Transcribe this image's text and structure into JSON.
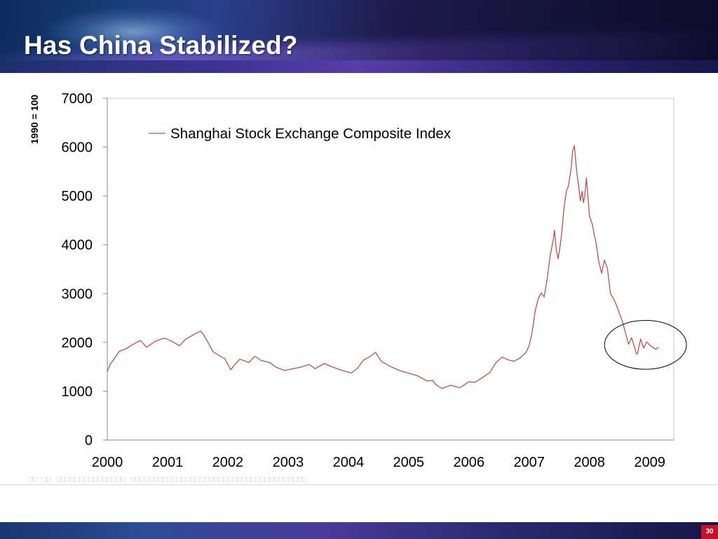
{
  "slide": {
    "title": "Has China Stabilized?",
    "page_number": "30"
  },
  "chart_data": {
    "type": "line",
    "title": "",
    "xlabel": "",
    "ylabel": "1990 = 100",
    "ylim": [
      0,
      7000
    ],
    "xlim": [
      2000,
      2009.4
    ],
    "yticks": [
      0,
      1000,
      2000,
      3000,
      4000,
      5000,
      6000,
      7000
    ],
    "xticks": [
      "2000",
      "2001",
      "2002",
      "2003",
      "2004",
      "2005",
      "2006",
      "2007",
      "2008",
      "2009"
    ],
    "grid": false,
    "legend_position": "top-left",
    "series": [
      {
        "name": "Shanghai Stock Exchange Composite Index",
        "color": "#c0504d",
        "x": [
          2000.0,
          2000.05,
          2000.1,
          2000.2,
          2000.3,
          2000.45,
          2000.55,
          2000.65,
          2000.8,
          2000.95,
          2001.05,
          2001.2,
          2001.3,
          2001.45,
          2001.55,
          2001.6,
          2001.7,
          2001.75,
          2001.85,
          2001.95,
          2002.05,
          2002.1,
          2002.2,
          2002.35,
          2002.45,
          2002.55,
          2002.7,
          2002.8,
          2002.95,
          2003.05,
          2003.2,
          2003.35,
          2003.45,
          2003.6,
          2003.75,
          2003.9,
          2004.05,
          2004.15,
          2004.25,
          2004.35,
          2004.45,
          2004.55,
          2004.7,
          2004.85,
          2005.0,
          2005.15,
          2005.3,
          2005.4,
          2005.45,
          2005.55,
          2005.7,
          2005.85,
          2006.0,
          2006.1,
          2006.25,
          2006.35,
          2006.45,
          2006.55,
          2006.65,
          2006.75,
          2006.85,
          2006.95,
          2007.0,
          2007.05,
          2007.1,
          2007.15,
          2007.2,
          2007.25,
          2007.3,
          2007.35,
          2007.4,
          2007.42,
          2007.45,
          2007.48,
          2007.52,
          2007.55,
          2007.58,
          2007.62,
          2007.65,
          2007.7,
          2007.72,
          2007.75,
          2007.78,
          2007.8,
          2007.82,
          2007.85,
          2007.88,
          2007.9,
          2007.92,
          2007.95,
          2008.0,
          2008.05,
          2008.08,
          2008.1,
          2008.12,
          2008.15,
          2008.2,
          2008.25,
          2008.3,
          2008.35,
          2008.4,
          2008.45,
          2008.5,
          2008.55,
          2008.6,
          2008.65,
          2008.7,
          2008.75,
          2008.78,
          2008.8,
          2008.85,
          2008.9,
          2008.95,
          2009.0,
          2009.05,
          2009.1,
          2009.15
        ],
        "values": [
          1400,
          1550,
          1650,
          1800,
          1880,
          1960,
          2050,
          1900,
          2020,
          2100,
          2020,
          1950,
          2050,
          2180,
          2230,
          2150,
          1950,
          1800,
          1750,
          1650,
          1450,
          1520,
          1650,
          1600,
          1700,
          1650,
          1570,
          1500,
          1420,
          1450,
          1500,
          1530,
          1480,
          1550,
          1500,
          1420,
          1370,
          1480,
          1620,
          1720,
          1780,
          1620,
          1500,
          1420,
          1380,
          1300,
          1230,
          1200,
          1150,
          1050,
          1120,
          1080,
          1180,
          1200,
          1280,
          1400,
          1580,
          1700,
          1650,
          1600,
          1700,
          1780,
          1950,
          2200,
          2650,
          2900,
          3000,
          2950,
          3300,
          3800,
          4100,
          4300,
          3900,
          3700,
          4050,
          4350,
          4800,
          5100,
          5200,
          5600,
          5900,
          6050,
          5600,
          5400,
          5200,
          4900,
          5100,
          4850,
          5000,
          5350,
          4600,
          4400,
          4200,
          4100,
          3950,
          3700,
          3400,
          3700,
          3500,
          3000,
          2900,
          2750,
          2600,
          2400,
          2200,
          1950,
          2100,
          1900,
          1750,
          1800,
          2050,
          1900,
          2000,
          1950,
          1900,
          1850,
          1900
        ]
      }
    ],
    "annotations": [
      {
        "type": "ellipse",
        "label": "",
        "x_center": 2008.93,
        "y_center": 1950,
        "x_radius": 0.68,
        "y_radius": 500
      }
    ]
  },
  "ghost_caption": "□□ □□ □□□□□□□□□□□□□□□ □□□□□□□□□□□□□□□□□□□□□□□□□□□□□□□□□□□□□□"
}
